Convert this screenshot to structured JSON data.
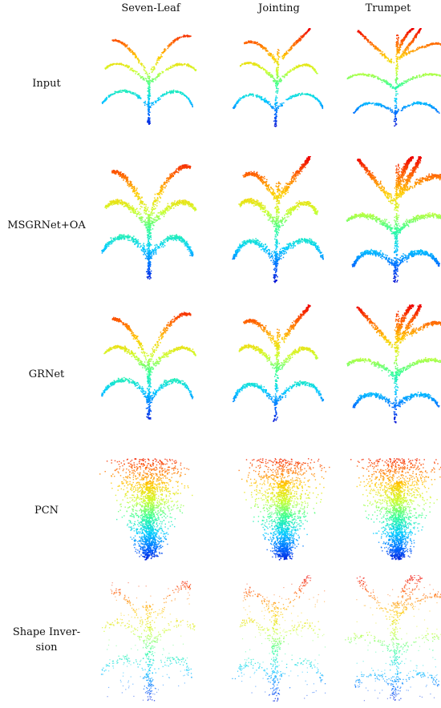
{
  "figure": {
    "columns": [
      "Seven-Leaf",
      "Jointing",
      "Trumpet"
    ],
    "rows": [
      {
        "label": "Input",
        "name": "input"
      },
      {
        "label": "MSGRNet+OA",
        "name": "msgrnet-oa"
      },
      {
        "label": "GRNet",
        "name": "grnet"
      },
      {
        "label": "PCN",
        "name": "pcn"
      },
      {
        "label": "Shape Inver-\nsion",
        "name": "shape-inversion"
      }
    ],
    "colormap": [
      "#0000cc",
      "#0066ff",
      "#00ccff",
      "#33ff99",
      "#ccff33",
      "#ffcc00",
      "#ff6600",
      "#ee0000"
    ]
  }
}
